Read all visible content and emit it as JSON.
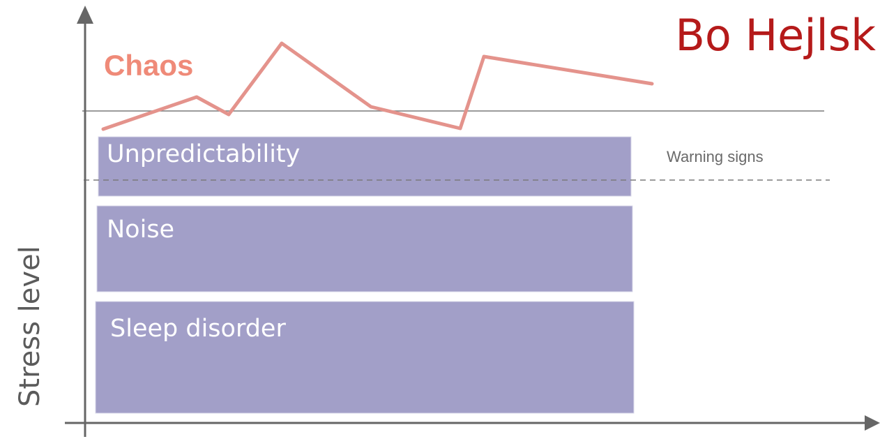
{
  "author": "Bo Hejlsk",
  "y_axis_label": "Stress level",
  "boxes": [
    {
      "label": "Unpredictability"
    },
    {
      "label": "Noise"
    },
    {
      "label": "Sleep disorder"
    }
  ],
  "chaos": {
    "label": "Chaos"
  },
  "warning": {
    "label": "Warning signs"
  },
  "colors": {
    "box_fill": "#a29fc8",
    "chaos": "#e4938c",
    "chaos_label": "#ef8a78",
    "author": "#b51a1a",
    "axis": "#666666",
    "threshold": "#7a7a7a"
  }
}
